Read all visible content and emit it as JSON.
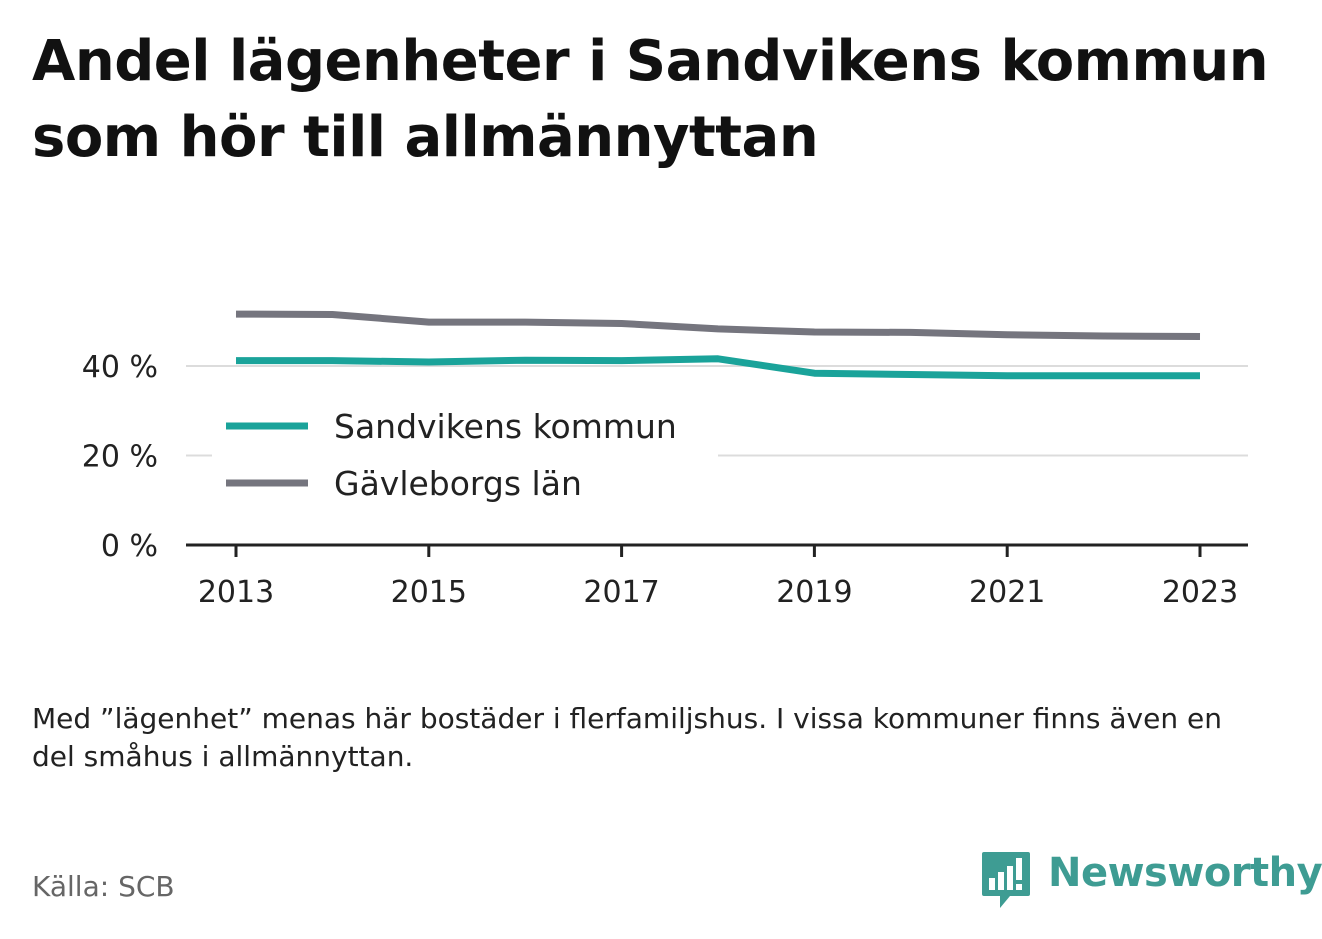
{
  "title": "Andel lägenheter i Sandvikens kommun som hör till allmännyttan",
  "note": "Med ”lägenhet” menas här bostäder i flerfamiljshus. I vissa kommuner finns även en del småhus i allmännyttan.",
  "source": "Källa: SCB",
  "brand": {
    "name": "Newsworthy",
    "icon": "newsworthy-logo-icon",
    "color": "#3e9c93"
  },
  "chart_data": {
    "type": "line",
    "title": "Andel lägenheter i Sandvikens kommun som hör till allmännyttan",
    "x": [
      2013,
      2014,
      2015,
      2016,
      2017,
      2018,
      2019,
      2020,
      2021,
      2022,
      2023
    ],
    "xticks": [
      "2013",
      "2015",
      "2017",
      "2019",
      "2021",
      "2023"
    ],
    "xlim": [
      2013,
      2023
    ],
    "yticks": [
      {
        "value": 0,
        "label": "0 %"
      },
      {
        "value": 20,
        "label": "20 %"
      },
      {
        "value": 40,
        "label": "40 %"
      }
    ],
    "ylim": [
      0,
      52
    ],
    "grid": true,
    "legend_position": "inside-left",
    "series": [
      {
        "name": "Sandvikens kommun",
        "color": "#1aa39a",
        "values": [
          41.2,
          41.2,
          40.9,
          41.3,
          41.2,
          41.6,
          38.4,
          38.1,
          37.8,
          37.8,
          37.8
        ]
      },
      {
        "name": "Gävleborgs län",
        "color": "#75757e",
        "values": [
          51.6,
          51.5,
          49.8,
          49.8,
          49.5,
          48.3,
          47.6,
          47.5,
          47.0,
          46.7,
          46.6
        ]
      }
    ]
  }
}
